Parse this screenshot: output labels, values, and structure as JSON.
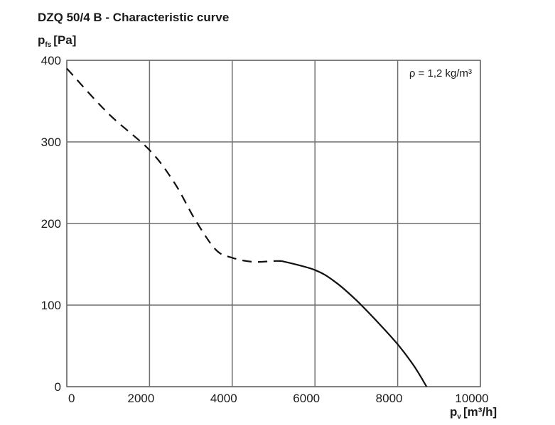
{
  "chart_data": {
    "type": "line",
    "title": "DZQ 50/4 B - Characteristic curve",
    "ylabel": {
      "main": "p",
      "sub": "fs",
      "unit": "[Pa]"
    },
    "xlabel": {
      "main": "p",
      "sub": "v",
      "unit": "[m³/h]"
    },
    "annotation": "ρ = 1,2 kg/m³",
    "xlim": [
      0,
      10000
    ],
    "ylim": [
      0,
      400
    ],
    "x_ticks": [
      0,
      2000,
      4000,
      6000,
      8000,
      10000
    ],
    "y_ticks": [
      0,
      100,
      200,
      300,
      400
    ],
    "x_tick_labels": [
      "0",
      "2000",
      "4000",
      "6000",
      "8000",
      "10000"
    ],
    "y_tick_labels": [
      "0",
      "100",
      "200",
      "300",
      "400"
    ],
    "grid": true,
    "series": [
      {
        "style": "dashed",
        "x": [
          0,
          1000,
          2000,
          2600,
          3100,
          3600,
          4000,
          4500,
          5000,
          5200
        ],
        "y": [
          390,
          335,
          290,
          250,
          205,
          168,
          158,
          153,
          154,
          154
        ]
      },
      {
        "style": "solid",
        "x": [
          5200,
          6000,
          6500,
          7000,
          7500,
          8000,
          8400,
          8700
        ],
        "y": [
          154,
          143,
          128,
          106,
          80,
          52,
          25,
          0
        ]
      }
    ]
  }
}
